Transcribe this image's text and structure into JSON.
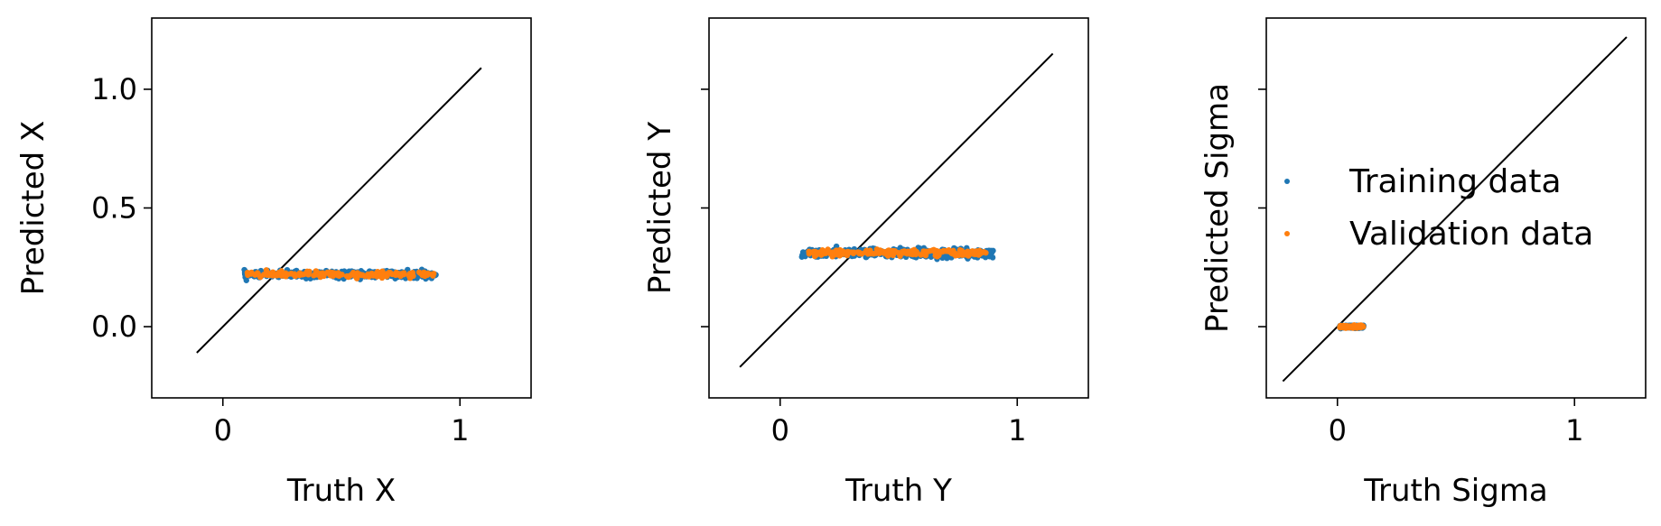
{
  "colors": {
    "training": "#1f77b4",
    "validation": "#ff7f0e",
    "identity_line": "#000000",
    "frame": "#000000"
  },
  "chart_data": [
    {
      "type": "scatter",
      "name": "panel-x",
      "xlabel": "Truth X",
      "ylabel": "Predicted X",
      "xlim": [
        -0.3,
        1.3
      ],
      "ylim": [
        -0.3,
        1.3
      ],
      "xticks": [
        {
          "value": 0,
          "label": "0"
        },
        {
          "value": 1,
          "label": "1"
        }
      ],
      "yticks": [
        {
          "value": 0.0,
          "label": "0.0"
        },
        {
          "value": 0.5,
          "label": "0.5"
        },
        {
          "value": 1.0,
          "label": "1.0"
        }
      ],
      "show_ytick_labels": true,
      "identity_line": [
        -0.11,
        1.09
      ],
      "series": [
        {
          "name": "Training data",
          "color_key": "training",
          "x_range": [
            0.09,
            0.9
          ],
          "y_center": 0.22,
          "y_spread": 0.012
        },
        {
          "name": "Validation data",
          "color_key": "validation",
          "x_range": [
            0.1,
            0.89
          ],
          "y_center": 0.22,
          "y_spread": 0.01
        }
      ],
      "legend": false
    },
    {
      "type": "scatter",
      "name": "panel-y",
      "xlabel": "Truth Y",
      "ylabel": "Predicted Y",
      "xlim": [
        -0.3,
        1.3
      ],
      "ylim": [
        -0.3,
        1.3
      ],
      "xticks": [
        {
          "value": 0,
          "label": "0"
        },
        {
          "value": 1,
          "label": "1"
        }
      ],
      "yticks": [
        {
          "value": 0.0,
          "label": ""
        },
        {
          "value": 0.5,
          "label": ""
        },
        {
          "value": 1.0,
          "label": ""
        }
      ],
      "show_ytick_labels": false,
      "identity_line": [
        -0.17,
        1.15
      ],
      "series": [
        {
          "name": "Training data",
          "color_key": "training",
          "x_range": [
            0.09,
            0.9
          ],
          "y_center": 0.31,
          "y_spread": 0.015
        },
        {
          "name": "Validation data",
          "color_key": "validation",
          "x_range": [
            0.12,
            0.87
          ],
          "y_center": 0.31,
          "y_spread": 0.012
        }
      ],
      "legend": false
    },
    {
      "type": "scatter",
      "name": "panel-sigma",
      "xlabel": "Truth Sigma",
      "ylabel": "Predicted Sigma",
      "xlim": [
        -0.3,
        1.3
      ],
      "ylim": [
        -0.3,
        1.3
      ],
      "xticks": [
        {
          "value": 0,
          "label": "0"
        },
        {
          "value": 1,
          "label": "1"
        }
      ],
      "yticks": [
        {
          "value": 0.0,
          "label": ""
        },
        {
          "value": 0.5,
          "label": ""
        },
        {
          "value": 1.0,
          "label": ""
        }
      ],
      "show_ytick_labels": false,
      "identity_line": [
        -0.23,
        1.22
      ],
      "series": [
        {
          "name": "Training data",
          "color_key": "training",
          "x_range": [
            0.01,
            0.11
          ],
          "y_center": 0.0,
          "y_spread": 0.004
        },
        {
          "name": "Validation data",
          "color_key": "validation",
          "x_range": [
            0.01,
            0.11
          ],
          "y_center": 0.0,
          "y_spread": 0.004
        }
      ],
      "legend": true,
      "legend_position": "center-left"
    }
  ],
  "legend": {
    "entries": [
      "Training data",
      "Validation data"
    ]
  }
}
